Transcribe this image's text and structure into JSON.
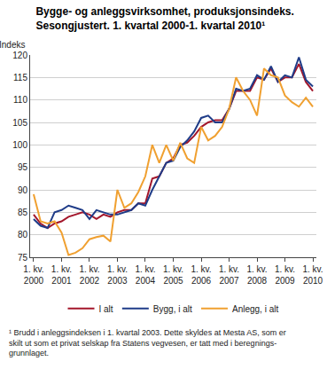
{
  "chart_data": {
    "type": "line",
    "title": "Bygge- og anleggsvirksomhet, produksjonsindeks.\nSesongjustert. 1. kvartal 2000-1. kvartal 2010¹",
    "ylabel": "Indeks",
    "footnote": "¹ Brudd i anleggsindeksen i 1. kvartal 2003. Dette skyldes at Mesta AS, som er\nskilt ut som et privat selskap fra Statens vegvesen, er tatt med i beregnings-\ngrunnlaget.",
    "categories": [
      "1. kv. 2000",
      null,
      null,
      null,
      "1. kv. 2001",
      null,
      null,
      null,
      "1. kv. 2002",
      null,
      null,
      null,
      "1. kv. 2003",
      null,
      null,
      null,
      "1. kv. 2004",
      null,
      null,
      null,
      "1. kv. 2005",
      null,
      null,
      null,
      "1. kv. 2006",
      null,
      null,
      null,
      "1. kv. 2007",
      null,
      null,
      null,
      "1. kv. 2008",
      null,
      null,
      null,
      "1. kv. 2009",
      null,
      null,
      null,
      "1. kv. 2010"
    ],
    "series": [
      {
        "name": "I alt",
        "color": "#a3162b",
        "values": [
          84.5,
          82.5,
          81.5,
          82.5,
          83,
          84,
          84.5,
          85,
          84.5,
          83.5,
          84.5,
          84,
          85,
          85.5,
          85.5,
          87,
          87,
          92.5,
          93,
          96,
          97,
          100,
          100.5,
          102,
          104,
          105,
          105.5,
          105.5,
          108,
          112,
          112,
          112,
          115,
          114.5,
          117,
          114,
          115,
          115,
          118,
          114,
          112
        ]
      },
      {
        "name": "Bygg, i alt",
        "color": "#1f3c88",
        "values": [
          83.5,
          82,
          81.5,
          85,
          85.5,
          86.5,
          86,
          85.5,
          83.5,
          85.5,
          85,
          84.5,
          84.5,
          85,
          85.5,
          87,
          86.5,
          90,
          93,
          96,
          96.5,
          99.5,
          101,
          103,
          106,
          106.5,
          105,
          105,
          108,
          112.5,
          112,
          112.5,
          115.5,
          114.5,
          117.5,
          114,
          115.5,
          115,
          119.5,
          114.5,
          113
        ]
      },
      {
        "name": "Anlegg, i alt",
        "color": "#f0a030",
        "values": [
          89,
          83,
          82.5,
          83,
          80.5,
          75.5,
          76,
          77,
          79,
          79.5,
          79.8,
          78.5,
          90,
          86,
          87,
          89.5,
          93,
          100,
          96,
          100,
          96.5,
          100.5,
          97,
          96,
          104,
          101,
          102,
          104,
          108,
          115,
          112,
          110,
          106.5,
          117,
          115.5,
          115,
          111,
          109.5,
          108.5,
          110.5,
          108.5
        ]
      }
    ],
    "ylim": [
      75,
      120
    ],
    "yticks": [
      75,
      80,
      85,
      90,
      95,
      100,
      105,
      110,
      115,
      120
    ],
    "grid": true,
    "legend": "bottom"
  }
}
